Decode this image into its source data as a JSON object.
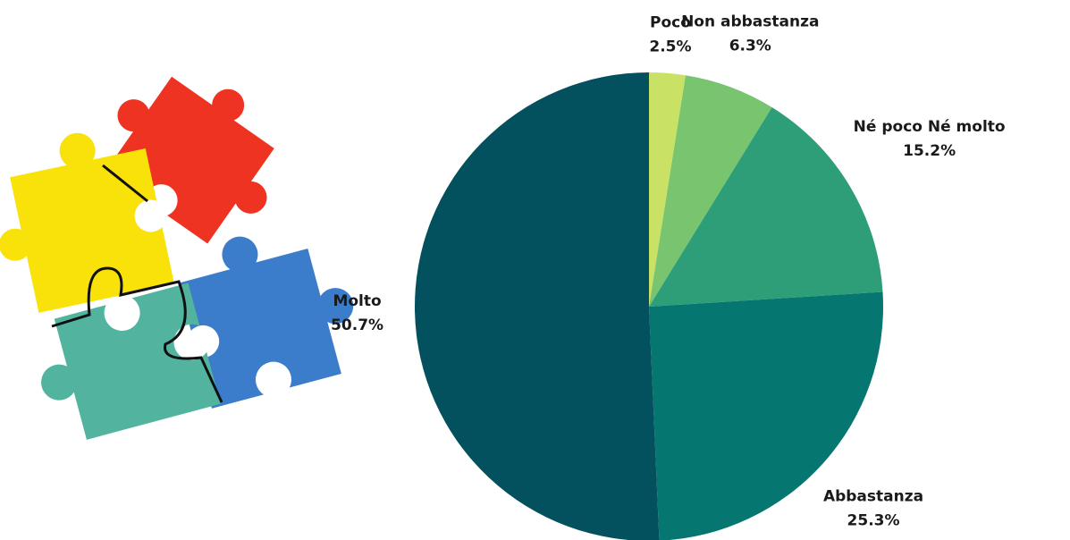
{
  "chart_data": {
    "type": "pie",
    "categories": [
      "Poco",
      "Non abbastanza",
      "Né poco Né molto",
      "Abbastanza",
      "Molto"
    ],
    "values": [
      2.5,
      6.3,
      15.2,
      25.3,
      50.7
    ],
    "value_labels": [
      "2.5%",
      "6.3%",
      "15.2%",
      "25.3%",
      "50.7%"
    ],
    "colors": [
      "#c9e265",
      "#78c46f",
      "#2e9e78",
      "#057670",
      "#03505e"
    ]
  }
}
